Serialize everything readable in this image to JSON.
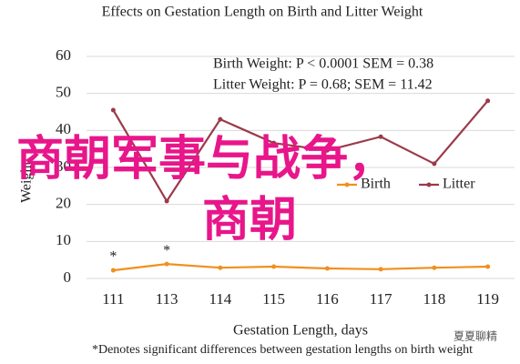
{
  "chart_data": {
    "type": "line",
    "title": "Effects on Gestation Length on Birth and Litter Weight",
    "x_label": "Gestation Length, days",
    "y_label": "Weight",
    "footnote": "*Denotes significant differences between gestation lengths on birth weight",
    "annotations": [
      "Birth Weight: P < 0.0001 SEM = 0.38",
      "Litter Weight: P = 0.68; SEM = 11.42"
    ],
    "categories": [
      "111",
      "113",
      "114",
      "115",
      "116",
      "117",
      "118",
      "119"
    ],
    "significance_labels": [
      "*",
      "*",
      null,
      null,
      null,
      null,
      null,
      null
    ],
    "series": [
      {
        "name": "Birth",
        "color": "#f0901e",
        "values": [
          2.2,
          3.9,
          2.9,
          3.2,
          2.7,
          2.5,
          2.9,
          3.2
        ]
      },
      {
        "name": "Litter",
        "color": "#9b3a4a",
        "values": [
          45.5,
          20.9,
          43,
          36.6,
          34.6,
          38.3,
          31,
          48
        ]
      }
    ],
    "ylim": [
      0,
      60
    ],
    "yticks": [
      0,
      10,
      20,
      30,
      40,
      50,
      60
    ],
    "grid": true
  },
  "overlay": {
    "line1": "商朝军事与战争，",
    "line2": "商朝"
  },
  "watermark": "夏夏聊精"
}
